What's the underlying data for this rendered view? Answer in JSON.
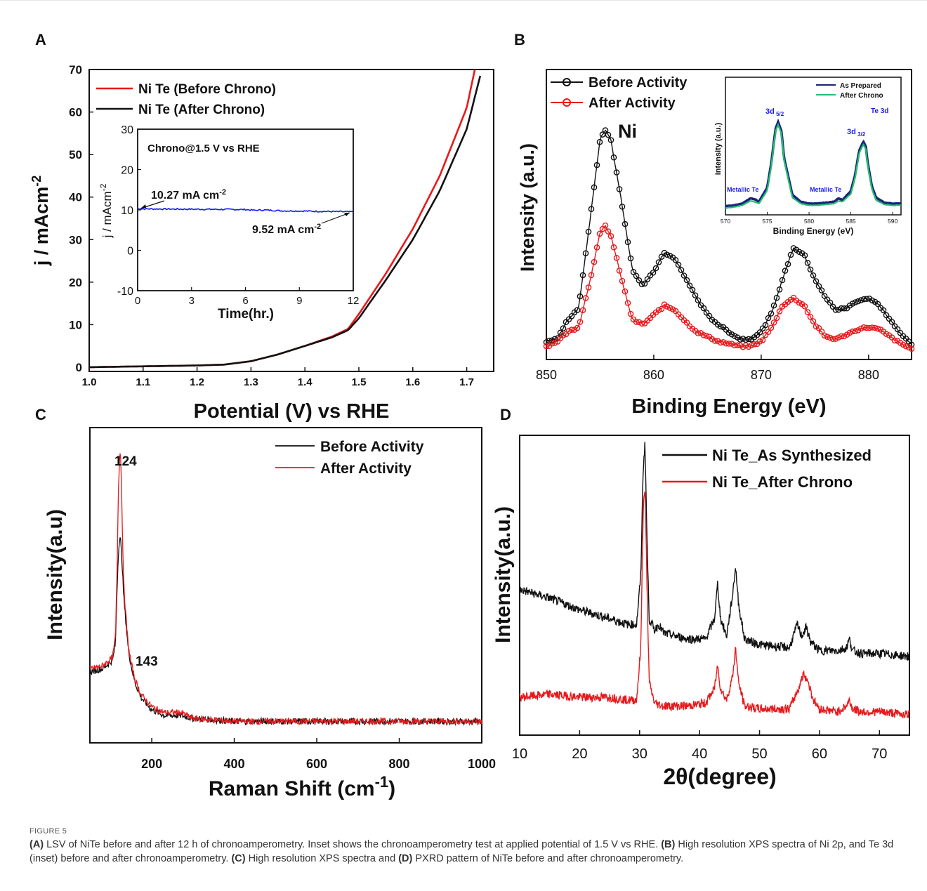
{
  "figure": {
    "label": "FIGURE 5",
    "caption": [
      {
        "b": "(A)",
        "t": " LSV of NiTe before and after 12 h of chronoamperometry. Inset shows the chronoamperometry test at applied potential of 1.5 V vs RHE. "
      },
      {
        "b": "(B)",
        "t": " High resolution XPS spectra of Ni 2p, and Te 3d (inset) before and after chronoamperometry. "
      },
      {
        "b": "(C)",
        "t": " High resolution XPS spectra and "
      },
      {
        "b": "(D)",
        "t": " PXRD pattern of NiTe before and after chronoamperometry."
      }
    ],
    "colors": {
      "black": "#111111",
      "red": "#e8191c",
      "blue": "#1a1aff",
      "green": "#22c06a",
      "navy": "#1a237e"
    }
  },
  "chart_data": [
    {
      "panel": "A",
      "type": "line",
      "xlabel": "Potential (V) vs RHE",
      "ylabel": "j / mAcm",
      "ylabel_sup": "-2",
      "xlim": [
        1.0,
        1.75
      ],
      "ylim": [
        -1,
        70
      ],
      "xticks": [
        "1.0",
        "1.1",
        "1.2",
        "1.3",
        "1.4",
        "1.5",
        "1.6",
        "1.7"
      ],
      "yticks": [
        "0",
        "10",
        "20",
        "30",
        "40",
        "50",
        "60",
        "70"
      ],
      "legend": [
        "Ni Te (Before Chrono)",
        "Ni Te (After Chrono)"
      ],
      "series": [
        {
          "name": "Ni Te (Before Chrono)",
          "color": "#e8191c",
          "x": [
            1.0,
            1.1,
            1.2,
            1.25,
            1.3,
            1.35,
            1.4,
            1.45,
            1.48,
            1.5,
            1.55,
            1.6,
            1.65,
            1.7,
            1.715
          ],
          "y": [
            0,
            0.2,
            0.4,
            0.6,
            1.4,
            3.0,
            5.0,
            7.2,
            9.0,
            12.5,
            22,
            32.5,
            45,
            61,
            70
          ]
        },
        {
          "name": "Ni Te (After Chrono)",
          "color": "#111111",
          "x": [
            1.0,
            1.1,
            1.2,
            1.25,
            1.3,
            1.35,
            1.4,
            1.45,
            1.48,
            1.5,
            1.55,
            1.6,
            1.65,
            1.7,
            1.725
          ],
          "y": [
            0,
            0.2,
            0.4,
            0.6,
            1.4,
            3.0,
            5.0,
            7.0,
            8.7,
            11.5,
            20.5,
            30,
            41.5,
            56,
            68.5
          ]
        }
      ],
      "inset": {
        "type": "line",
        "title": "Chrono@1.5 V vs RHE",
        "xlabel": "Time(hr.)",
        "ylabel": "j / mAcm",
        "ylabel_sup": "-2",
        "xlim": [
          0,
          12
        ],
        "ylim": [
          -10,
          30
        ],
        "xticks": [
          "0",
          "3",
          "6",
          "9",
          "12"
        ],
        "yticks": [
          "-10",
          "0",
          "10",
          "20",
          "30"
        ],
        "annotation_start": "10.27 mA cm",
        "annotation_end": "9.52 mA cm",
        "annotation_sup": "-2",
        "series": [
          {
            "color": "#1a1aff",
            "x": [
              0,
              6,
              6.5,
              7,
              8,
              12
            ],
            "y": [
              10.27,
              10.1,
              9.9,
              10.0,
              9.8,
              9.52
            ]
          }
        ]
      }
    },
    {
      "panel": "B",
      "type": "line",
      "xlabel": "Binding Energy (eV)",
      "ylabel": "Intensity (a.u.)",
      "xlim": [
        850,
        884
      ],
      "xticks": [
        "850",
        "860",
        "870",
        "880"
      ],
      "legend": [
        "Before Activity",
        "After Activity"
      ],
      "element_label": "Ni",
      "series": [
        {
          "name": "Before Activity",
          "color": "#111111",
          "x": [
            850,
            851,
            852,
            853,
            854,
            855,
            855.5,
            856,
            857,
            858,
            859,
            860,
            861,
            862,
            863,
            864,
            865,
            866,
            867,
            868,
            869,
            870,
            871,
            872,
            873,
            874,
            875,
            876,
            877,
            878,
            879,
            880,
            881,
            882,
            883,
            884
          ],
          "y": [
            0.04,
            0.05,
            0.13,
            0.18,
            0.52,
            0.88,
            0.92,
            0.88,
            0.62,
            0.34,
            0.27,
            0.33,
            0.41,
            0.38,
            0.3,
            0.22,
            0.15,
            0.11,
            0.08,
            0.05,
            0.05,
            0.08,
            0.16,
            0.3,
            0.43,
            0.4,
            0.3,
            0.22,
            0.17,
            0.18,
            0.21,
            0.22,
            0.19,
            0.13,
            0.07,
            0.03
          ]
        },
        {
          "name": "After Activity",
          "color": "#e8191c",
          "x": [
            850,
            851,
            852,
            853,
            854,
            855,
            855.5,
            856,
            857,
            858,
            859,
            860,
            861,
            862,
            863,
            864,
            865,
            866,
            867,
            868,
            869,
            870,
            871,
            872,
            873,
            874,
            875,
            876,
            877,
            878,
            879,
            880,
            881,
            882,
            883,
            884
          ],
          "y": [
            0.02,
            0.04,
            0.08,
            0.1,
            0.28,
            0.49,
            0.52,
            0.48,
            0.3,
            0.13,
            0.11,
            0.15,
            0.19,
            0.17,
            0.12,
            0.08,
            0.06,
            0.04,
            0.03,
            0.02,
            0.02,
            0.04,
            0.1,
            0.19,
            0.22,
            0.19,
            0.11,
            0.06,
            0.05,
            0.07,
            0.09,
            0.1,
            0.09,
            0.06,
            0.03,
            0.01
          ]
        }
      ],
      "inset": {
        "type": "line",
        "xlabel": "Binding Energy (eV)",
        "ylabel": "Intensity (a.u.)",
        "xlim": [
          570,
          591
        ],
        "xticks": [
          "570",
          "575",
          "580",
          "585",
          "590"
        ],
        "legend": [
          "As Prepared",
          "After Chrono"
        ],
        "panel_label": "Te 3d",
        "peak_labels": [
          {
            "main": "3d",
            "sub": "5/2"
          },
          {
            "main": "3d",
            "sub": "3/2"
          }
        ],
        "metallic_labels": [
          "Metallic Te",
          "Metallic Te"
        ],
        "series": [
          {
            "name": "As Prepared",
            "color": "#1a237e",
            "x": [
              570,
              571,
              572,
              573,
              573.5,
              574,
              575,
              575.5,
              576,
              576.3,
              576.7,
              577,
              578,
              579,
              580,
              581,
              582,
              583,
              583.5,
              584,
              585,
              585.5,
              586,
              586.5,
              586.8,
              587,
              587.5,
              588,
              589,
              590,
              591
            ],
            "y": [
              0.05,
              0.06,
              0.08,
              0.14,
              0.13,
              0.1,
              0.26,
              0.55,
              0.93,
              1.0,
              0.9,
              0.6,
              0.18,
              0.1,
              0.08,
              0.08,
              0.09,
              0.1,
              0.14,
              0.12,
              0.22,
              0.4,
              0.68,
              0.78,
              0.72,
              0.55,
              0.28,
              0.15,
              0.09,
              0.08,
              0.08
            ]
          },
          {
            "name": "After Chrono",
            "color": "#22c06a",
            "x": [
              570,
              571,
              572,
              573,
              573.5,
              574,
              575,
              575.5,
              576,
              576.3,
              576.7,
              577,
              578,
              579,
              580,
              581,
              582,
              583,
              583.5,
              584,
              585,
              585.5,
              586,
              586.5,
              586.8,
              587,
              587.5,
              588,
              589,
              590,
              591
            ],
            "y": [
              0.03,
              0.04,
              0.06,
              0.11,
              0.1,
              0.08,
              0.23,
              0.52,
              0.9,
              0.97,
              0.87,
              0.57,
              0.15,
              0.08,
              0.06,
              0.06,
              0.07,
              0.08,
              0.11,
              0.1,
              0.19,
              0.37,
              0.65,
              0.75,
              0.69,
              0.52,
              0.25,
              0.12,
              0.07,
              0.06,
              0.06
            ]
          }
        ]
      }
    },
    {
      "panel": "C",
      "type": "line",
      "xlabel": "Raman Shift (cm",
      "xlabel_sup": "-1",
      "xlabel_end": ")",
      "ylabel": "Intensity(a.u)",
      "xlim": [
        50,
        1000
      ],
      "xticks": [
        "200",
        "400",
        "600",
        "800",
        "1000"
      ],
      "legend": [
        "Before Activity",
        "After Activity"
      ],
      "peak_labels": [
        {
          "text": "124",
          "x": 124
        },
        {
          "text": "143",
          "x": 143
        }
      ],
      "series": [
        {
          "name": "Before Activity",
          "color": "#111111",
          "x": [
            50,
            80,
            105,
            112,
            116,
            120,
            124,
            128,
            132,
            138,
            143,
            150,
            160,
            175,
            200,
            230,
            270,
            300,
            400,
            500,
            600,
            700,
            800,
            900,
            1000
          ],
          "y": [
            0.22,
            0.23,
            0.26,
            0.32,
            0.52,
            0.66,
            0.68,
            0.6,
            0.48,
            0.38,
            0.3,
            0.24,
            0.18,
            0.13,
            0.09,
            0.07,
            0.07,
            0.06,
            0.05,
            0.05,
            0.05,
            0.05,
            0.05,
            0.05,
            0.05
          ]
        },
        {
          "name": "After Activity",
          "color": "#e8191c",
          "x": [
            50,
            80,
            105,
            112,
            116,
            119,
            122,
            124,
            126,
            129,
            132,
            138,
            143,
            150,
            160,
            175,
            200,
            230,
            270,
            300,
            400,
            500,
            600,
            700,
            800,
            900,
            1000
          ],
          "y": [
            0.23,
            0.24,
            0.27,
            0.34,
            0.58,
            0.85,
            0.96,
            0.98,
            0.9,
            0.7,
            0.52,
            0.4,
            0.31,
            0.25,
            0.19,
            0.14,
            0.1,
            0.08,
            0.08,
            0.06,
            0.05,
            0.05,
            0.05,
            0.05,
            0.05,
            0.05,
            0.05
          ]
        }
      ]
    },
    {
      "panel": "D",
      "type": "line",
      "xlabel": "(degree)",
      "xlabel_symbol": "2θ",
      "ylabel": "Intensity(a.u.)",
      "xlim": [
        10,
        75
      ],
      "xticks": [
        "10",
        "20",
        "30",
        "40",
        "50",
        "60",
        "70"
      ],
      "legend": [
        "Ni Te_As Synthesized",
        "Ni Te_After Chrono"
      ],
      "series": [
        {
          "name": "Ni Te_As Synthesized",
          "color": "#111111",
          "x": [
            10,
            15,
            20,
            25,
            28,
            29.5,
            30.2,
            30.6,
            30.9,
            31.2,
            31.6,
            32.5,
            33.2,
            34,
            38,
            41,
            42.5,
            43,
            43.5,
            44.5,
            45.5,
            46,
            46.5,
            47.5,
            50,
            55,
            56.3,
            57,
            57.8,
            58.5,
            60,
            63,
            64.5,
            65,
            65.5,
            67,
            70,
            75
          ],
          "y": [
            0.5,
            0.47,
            0.43,
            0.4,
            0.38,
            0.38,
            0.55,
            0.92,
            1.0,
            0.7,
            0.4,
            0.36,
            0.38,
            0.35,
            0.33,
            0.33,
            0.4,
            0.52,
            0.4,
            0.34,
            0.48,
            0.58,
            0.45,
            0.33,
            0.31,
            0.3,
            0.38,
            0.34,
            0.37,
            0.32,
            0.29,
            0.29,
            0.3,
            0.33,
            0.29,
            0.28,
            0.28,
            0.27
          ]
        },
        {
          "name": "Ni Te_After Chrono",
          "color": "#e8191c",
          "x": [
            10,
            15,
            20,
            25,
            28,
            29.5,
            30.2,
            30.6,
            30.9,
            31.2,
            31.6,
            32.5,
            34,
            38,
            41,
            42.5,
            43,
            43.5,
            44.5,
            45.5,
            46,
            46.5,
            47.5,
            50,
            55,
            56.5,
            57.3,
            58,
            59,
            60,
            63,
            64.5,
            65,
            65.5,
            67,
            70,
            75
          ],
          "y": [
            0.13,
            0.14,
            0.13,
            0.13,
            0.12,
            0.12,
            0.3,
            0.78,
            0.85,
            0.55,
            0.18,
            0.11,
            0.1,
            0.1,
            0.11,
            0.16,
            0.24,
            0.16,
            0.12,
            0.2,
            0.3,
            0.18,
            0.1,
            0.09,
            0.09,
            0.16,
            0.21,
            0.19,
            0.12,
            0.09,
            0.08,
            0.1,
            0.12,
            0.09,
            0.08,
            0.08,
            0.07
          ]
        }
      ]
    }
  ],
  "panel_labels": [
    "A",
    "B",
    "C",
    "D"
  ]
}
